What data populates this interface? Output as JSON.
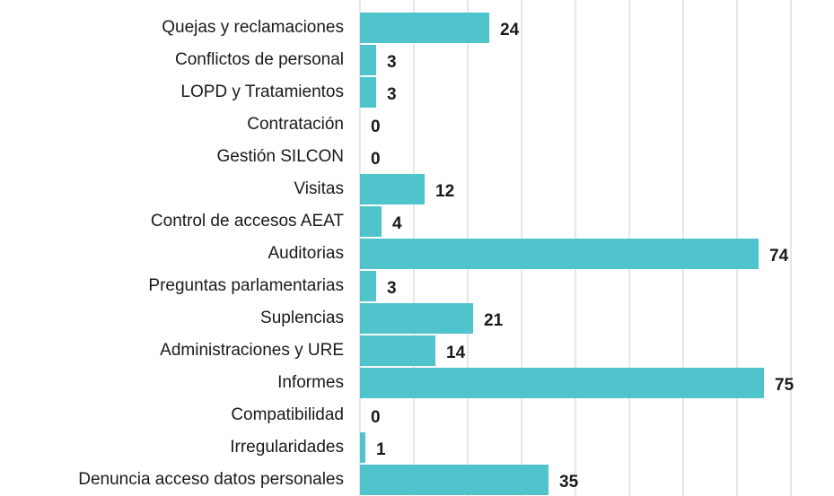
{
  "chart_data": {
    "type": "barh",
    "categories": [
      "Quejas y reclamaciones",
      "Conflictos de personal",
      "LOPD y Tratamientos",
      "Contratación",
      "Gestión SILCON",
      "Visitas",
      "Control de accesos AEAT",
      "Auditorias",
      "Preguntas parlamentarias",
      "Suplencias",
      "Administraciones y URE",
      "Informes",
      "Compatibilidad",
      "Irregularidades",
      "Denuncia acceso datos personales"
    ],
    "values": [
      24,
      3,
      3,
      0,
      0,
      12,
      4,
      74,
      3,
      21,
      14,
      75,
      0,
      1,
      35
    ],
    "color": "#4fc4cd",
    "xlim": [
      0,
      87
    ],
    "xticks": [
      0,
      10,
      20,
      30,
      40,
      50,
      60,
      70,
      80
    ],
    "grid": true
  }
}
